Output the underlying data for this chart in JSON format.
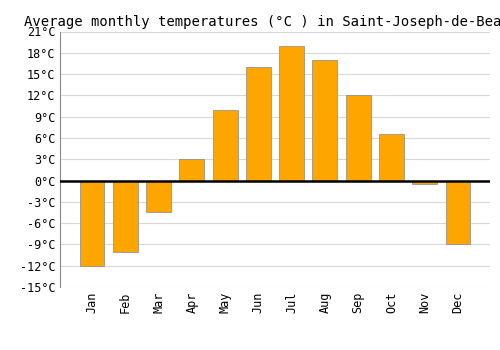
{
  "months": [
    "Jan",
    "Feb",
    "Mar",
    "Apr",
    "May",
    "Jun",
    "Jul",
    "Aug",
    "Sep",
    "Oct",
    "Nov",
    "Dec"
  ],
  "values": [
    -12,
    -10,
    -4.5,
    3,
    10,
    16,
    19,
    17,
    12,
    6.5,
    -0.5,
    -9
  ],
  "bar_color": "#FFA500",
  "bar_edge_color": "#888888",
  "title": "Average monthly temperatures (°C ) in Saint-Joseph-de-Beauce",
  "ylim": [
    -15,
    21
  ],
  "yticks": [
    -15,
    -12,
    -9,
    -6,
    -3,
    0,
    3,
    6,
    9,
    12,
    15,
    18,
    21
  ],
  "ytick_labels": [
    "-15°C",
    "-12°C",
    "-9°C",
    "-6°C",
    "-3°C",
    "0°C",
    "3°C",
    "6°C",
    "9°C",
    "12°C",
    "15°C",
    "18°C",
    "21°C"
  ],
  "background_color": "#ffffff",
  "grid_color": "#d8d8d8",
  "title_fontsize": 10,
  "tick_fontsize": 8.5,
  "zero_line_color": "#000000",
  "bar_width": 0.75,
  "spine_color": "#888888"
}
